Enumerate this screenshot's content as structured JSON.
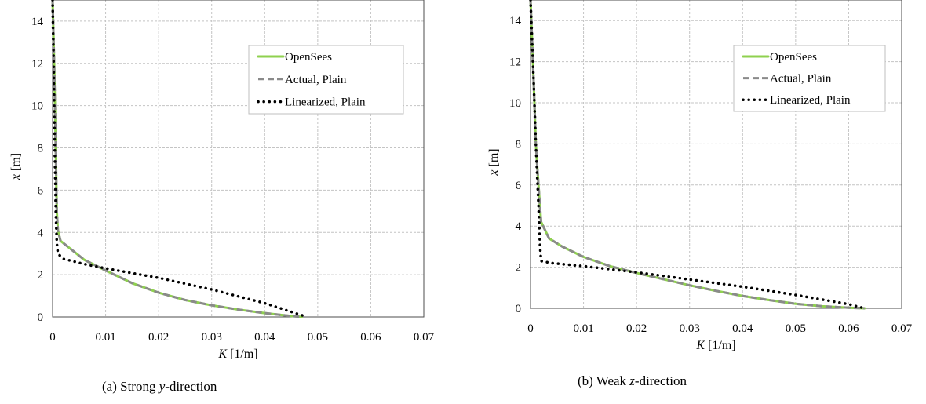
{
  "chart_data": [
    {
      "type": "line",
      "caption": {
        "prefix": "(a)  Strong ",
        "var": "y",
        "suffix": "-direction"
      },
      "xlabel": {
        "var": "K",
        "unit": " [1/m]"
      },
      "ylabel": {
        "var": "x",
        "unit": " [m]"
      },
      "xlim": [
        0,
        0.07
      ],
      "ylim": [
        0,
        15
      ],
      "xticks": [
        "0",
        "0.01",
        "0.02",
        "0.03",
        "0.04",
        "0.05",
        "0.06",
        "0.07"
      ],
      "yticks": [
        "0",
        "2",
        "4",
        "6",
        "8",
        "10",
        "12",
        "14"
      ],
      "grid": true,
      "legend_position": "top-right",
      "series": [
        {
          "name": "OpenSees",
          "style": "solid",
          "color": "#8fd14f",
          "x": [
            0,
            0.0003,
            0.0006,
            0.0008,
            0.001,
            0.0015,
            0.003,
            0.006,
            0.01,
            0.015,
            0.02,
            0.025,
            0.03,
            0.035,
            0.04,
            0.044,
            0.047
          ],
          "y": [
            15,
            12,
            8,
            5,
            4.1,
            3.6,
            3.3,
            2.7,
            2.2,
            1.6,
            1.15,
            0.8,
            0.55,
            0.35,
            0.18,
            0.07,
            0
          ]
        },
        {
          "name": "Actual, Plain",
          "style": "dashed",
          "color": "#8a8a8a",
          "x": [
            0,
            0.0003,
            0.0006,
            0.0008,
            0.001,
            0.0015,
            0.003,
            0.006,
            0.01,
            0.015,
            0.02,
            0.025,
            0.03,
            0.035,
            0.04,
            0.044,
            0.047
          ],
          "y": [
            15,
            12,
            8,
            5,
            4.1,
            3.6,
            3.3,
            2.7,
            2.2,
            1.6,
            1.15,
            0.8,
            0.55,
            0.35,
            0.18,
            0.07,
            0
          ]
        },
        {
          "name": "Linearized, Plain",
          "style": "dotted",
          "color": "#000000",
          "x": [
            0,
            0.0002,
            0.0004,
            0.0006,
            0.0008,
            0.001,
            0.002,
            0.006,
            0.01,
            0.02,
            0.03,
            0.04,
            0.048
          ],
          "y": [
            15,
            12,
            8,
            5,
            3.5,
            3.0,
            2.75,
            2.5,
            2.3,
            1.85,
            1.3,
            0.65,
            0
          ]
        }
      ]
    },
    {
      "type": "line",
      "caption": {
        "prefix": "(b)  Weak ",
        "var": "z",
        "suffix": "-direction"
      },
      "xlabel": {
        "var": "K",
        "unit": " [1/m]"
      },
      "ylabel": {
        "var": "x",
        "unit": " [m]"
      },
      "xlim": [
        0,
        0.07
      ],
      "ylim": [
        0,
        15
      ],
      "xticks": [
        "0",
        "0.01",
        "0.02",
        "0.03",
        "0.04",
        "0.05",
        "0.06",
        "0.07"
      ],
      "yticks": [
        "0",
        "2",
        "4",
        "6",
        "8",
        "10",
        "12",
        "14"
      ],
      "grid": true,
      "legend_position": "top-right",
      "series": [
        {
          "name": "OpenSees",
          "style": "solid",
          "color": "#8fd14f",
          "x": [
            0,
            0.0003,
            0.0006,
            0.001,
            0.0015,
            0.002,
            0.0035,
            0.006,
            0.01,
            0.015,
            0.02,
            0.025,
            0.03,
            0.035,
            0.04,
            0.045,
            0.05,
            0.055,
            0.06,
            0.063
          ],
          "y": [
            15,
            13,
            11,
            8,
            6,
            4.2,
            3.4,
            3.0,
            2.5,
            2.05,
            1.72,
            1.42,
            1.12,
            0.85,
            0.6,
            0.4,
            0.22,
            0.1,
            0.03,
            0
          ]
        },
        {
          "name": "Actual, Plain",
          "style": "dashed",
          "color": "#8a8a8a",
          "x": [
            0,
            0.0003,
            0.0006,
            0.001,
            0.0015,
            0.002,
            0.0035,
            0.006,
            0.01,
            0.015,
            0.02,
            0.025,
            0.03,
            0.035,
            0.04,
            0.045,
            0.05,
            0.055,
            0.06,
            0.063
          ],
          "y": [
            15,
            13,
            11,
            8,
            6,
            4.2,
            3.4,
            3.0,
            2.5,
            2.05,
            1.72,
            1.42,
            1.12,
            0.85,
            0.6,
            0.4,
            0.22,
            0.1,
            0.03,
            0
          ]
        },
        {
          "name": "Linearized, Plain",
          "style": "dotted",
          "color": "#000000",
          "x": [
            0,
            0.0003,
            0.0006,
            0.001,
            0.0015,
            0.0018,
            0.002,
            0.004,
            0.01,
            0.02,
            0.03,
            0.04,
            0.05,
            0.06,
            0.063
          ],
          "y": [
            15,
            13,
            11,
            8,
            5,
            3,
            2.3,
            2.2,
            2.05,
            1.75,
            1.4,
            1.05,
            0.65,
            0.2,
            0
          ]
        }
      ]
    }
  ]
}
